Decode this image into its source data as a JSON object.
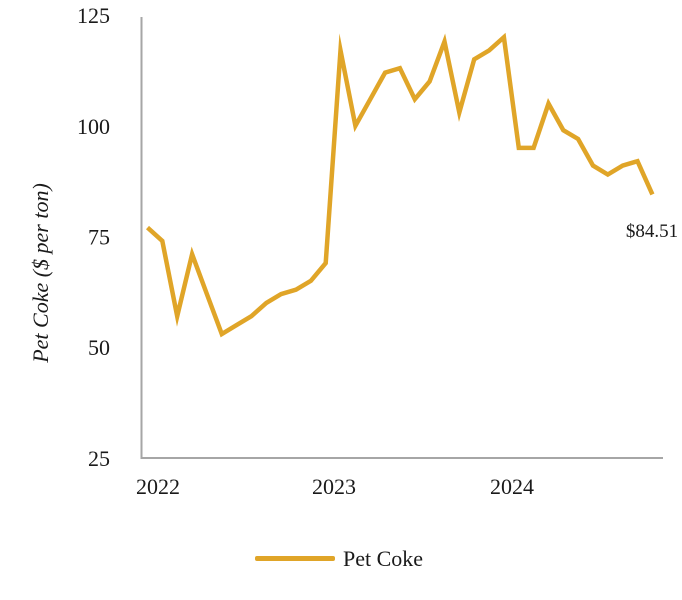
{
  "chart_data": {
    "type": "line",
    "title": "",
    "xlabel": "",
    "ylabel": "Pet Coke ($ per ton)",
    "x_tick_labels": [
      "2022",
      "2023",
      "2024"
    ],
    "y_tick_labels": [
      "25",
      "50",
      "75",
      "100",
      "125"
    ],
    "ylim": [
      25,
      125
    ],
    "grid": false,
    "legend_position": "bottom",
    "axis_color": "#a6a6a6",
    "text_color": "#1a1a1a",
    "series": [
      {
        "name": "Pet Coke",
        "color": "#e0a528",
        "x": [
          "2021-12",
          "2022-01",
          "2022-02",
          "2022-03",
          "2022-04",
          "2022-05",
          "2022-06",
          "2022-07",
          "2022-08",
          "2022-09",
          "2022-10",
          "2022-11",
          "2022-12",
          "2023-01",
          "2023-02",
          "2023-03",
          "2023-04",
          "2023-05",
          "2023-06",
          "2023-07",
          "2023-08",
          "2023-09",
          "2023-10",
          "2023-11",
          "2023-12",
          "2024-01",
          "2024-02",
          "2024-03",
          "2024-04",
          "2024-05",
          "2024-06",
          "2024-07",
          "2024-08",
          "2024-09",
          "2024-10"
        ],
        "values": [
          77,
          74,
          57,
          71,
          62,
          53,
          55,
          57,
          60,
          62,
          63,
          65,
          69,
          117,
          100,
          106,
          112,
          113,
          106,
          110,
          119,
          103,
          115,
          117,
          120,
          95,
          95,
          105,
          99,
          97,
          91,
          89,
          91,
          92,
          84.51
        ]
      }
    ],
    "annotations": [
      {
        "text": "$84.51",
        "x": "2024-10",
        "y": 84.51
      }
    ]
  }
}
